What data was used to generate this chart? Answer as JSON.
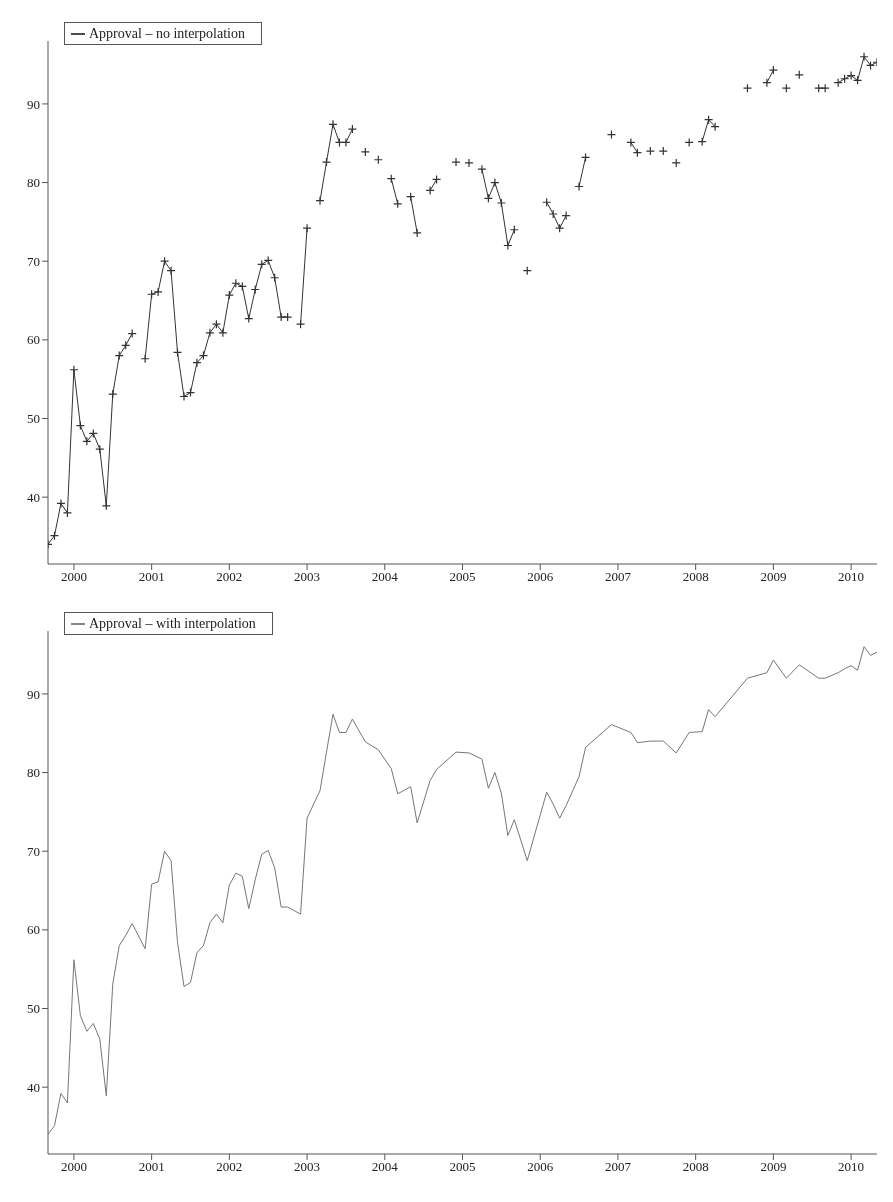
{
  "chart_data": [
    {
      "type": "line",
      "legend": "top left",
      "marker": "cross",
      "grid": false,
      "xlim": [
        "1999-09",
        "2010-05"
      ],
      "xticks": [
        "2000",
        "2001",
        "2002",
        "2003",
        "2004",
        "2005",
        "2006",
        "2007",
        "2008",
        "2009",
        "2010"
      ],
      "ylim": [
        31.5,
        98
      ],
      "yticks": [
        40,
        50,
        60,
        70,
        80,
        90
      ],
      "series": [
        {
          "name": "Approval – no interpolation",
          "color": "#333333",
          "x": [
            "1999-09",
            "1999-10",
            "1999-11",
            "1999-12",
            "2000-01",
            "2000-02",
            "2000-03",
            "2000-04",
            "2000-05",
            "2000-06",
            "2000-07",
            "2000-08",
            "2000-09",
            "2000-10",
            "2000-11",
            "2000-12",
            "2001-01",
            "2001-02",
            "2001-03",
            "2001-04",
            "2001-05",
            "2001-06",
            "2001-07",
            "2001-08",
            "2001-09",
            "2001-10",
            "2001-11",
            "2001-12",
            "2002-01",
            "2002-02",
            "2002-03",
            "2002-04",
            "2002-05",
            "2002-06",
            "2002-07",
            "2002-08",
            "2002-09",
            "2002-10",
            "2002-11",
            "2002-12",
            "2003-01",
            "2003-02",
            "2003-03",
            "2003-04",
            "2003-05",
            "2003-06",
            "2003-07",
            "2003-08",
            "2003-09",
            "2003-10",
            "2003-11",
            "2003-12",
            "2004-01",
            "2004-02",
            "2004-03",
            "2004-04",
            "2004-05",
            "2004-06",
            "2004-07",
            "2004-08",
            "2004-09",
            "2004-10",
            "2004-11",
            "2004-12",
            "2005-01",
            "2005-02",
            "2005-03",
            "2005-04",
            "2005-05",
            "2005-06",
            "2005-07",
            "2005-08",
            "2005-09",
            "2005-10",
            "2005-11",
            "2005-12",
            "2006-01",
            "2006-02",
            "2006-03",
            "2006-04",
            "2006-05",
            "2006-06",
            "2006-07",
            "2006-08",
            "2006-09",
            "2006-10",
            "2006-11",
            "2006-12",
            "2007-01",
            "2007-02",
            "2007-03",
            "2007-04",
            "2007-05",
            "2007-06",
            "2007-07",
            "2007-08",
            "2007-09",
            "2007-10",
            "2007-11",
            "2007-12",
            "2008-01",
            "2008-02",
            "2008-03",
            "2008-04",
            "2008-05",
            "2008-06",
            "2008-07",
            "2008-08",
            "2008-09",
            "2008-10",
            "2008-11",
            "2008-12",
            "2009-01",
            "2009-02",
            "2009-03",
            "2009-04",
            "2009-05",
            "2009-06",
            "2009-07",
            "2009-08",
            "2009-09",
            "2009-10",
            "2009-11",
            "2009-12",
            "2010-01",
            "2010-02",
            "2010-03",
            "2010-04",
            "2010-05"
          ],
          "values": [
            34.0,
            35.1,
            39.2,
            38.0,
            56.2,
            49.1,
            47.1,
            48.1,
            46.1,
            38.9,
            53.1,
            58.0,
            59.3,
            60.8,
            null,
            57.6,
            65.8,
            66.1,
            70.0,
            68.8,
            58.4,
            52.8,
            53.3,
            57.1,
            58.0,
            60.9,
            62.0,
            60.9,
            65.7,
            67.2,
            66.8,
            62.7,
            66.4,
            69.6,
            70.1,
            67.9,
            62.9,
            62.9,
            null,
            62.0,
            74.2,
            null,
            77.7,
            82.6,
            87.4,
            85.1,
            85.1,
            86.8,
            null,
            83.9,
            null,
            82.9,
            null,
            80.5,
            77.3,
            null,
            78.2,
            73.6,
            null,
            79.0,
            80.4,
            null,
            null,
            82.6,
            null,
            82.5,
            null,
            81.7,
            78.0,
            80.0,
            77.4,
            72.0,
            74.0,
            null,
            68.8,
            null,
            null,
            77.5,
            76.0,
            74.2,
            75.8,
            null,
            79.5,
            83.2,
            null,
            null,
            null,
            86.1,
            null,
            null,
            85.1,
            83.8,
            null,
            84.0,
            null,
            84.0,
            null,
            82.5,
            null,
            85.1,
            null,
            85.2,
            88.0,
            87.1,
            null,
            null,
            null,
            null,
            92.0,
            null,
            null,
            92.7,
            94.3,
            null,
            92.0,
            null,
            93.7,
            null,
            null,
            92.0,
            92.0,
            null,
            92.7,
            93.2,
            93.6,
            93.0,
            96.0,
            94.9,
            95.3
          ]
        }
      ]
    },
    {
      "type": "line",
      "legend": "top left",
      "grid": false,
      "xlim": [
        "1999-09",
        "2010-05"
      ],
      "xticks": [
        "2000",
        "2001",
        "2002",
        "2003",
        "2004",
        "2005",
        "2006",
        "2007",
        "2008",
        "2009",
        "2010"
      ],
      "ylim": [
        31.5,
        98
      ],
      "yticks": [
        40,
        50,
        60,
        70,
        80,
        90
      ],
      "series": [
        {
          "name": "Approval – with interpolation",
          "color": "#777777",
          "x": [
            "1999-09",
            "1999-10",
            "1999-11",
            "1999-12",
            "2000-01",
            "2000-02",
            "2000-03",
            "2000-04",
            "2000-05",
            "2000-06",
            "2000-07",
            "2000-08",
            "2000-09",
            "2000-10",
            "2000-12",
            "2001-01",
            "2001-02",
            "2001-03",
            "2001-04",
            "2001-05",
            "2001-06",
            "2001-07",
            "2001-08",
            "2001-09",
            "2001-10",
            "2001-11",
            "2001-12",
            "2002-01",
            "2002-02",
            "2002-03",
            "2002-04",
            "2002-05",
            "2002-06",
            "2002-07",
            "2002-08",
            "2002-09",
            "2002-10",
            "2002-12",
            "2003-01",
            "2003-03",
            "2003-04",
            "2003-05",
            "2003-06",
            "2003-07",
            "2003-08",
            "2003-10",
            "2003-12",
            "2004-02",
            "2004-03",
            "2004-05",
            "2004-06",
            "2004-08",
            "2004-09",
            "2004-12",
            "2005-02",
            "2005-04",
            "2005-05",
            "2005-06",
            "2005-07",
            "2005-08",
            "2005-09",
            "2005-11",
            "2006-02",
            "2006-03",
            "2006-04",
            "2006-05",
            "2006-07",
            "2006-08",
            "2006-12",
            "2007-03",
            "2007-04",
            "2007-06",
            "2007-08",
            "2007-10",
            "2007-12",
            "2008-02",
            "2008-03",
            "2008-04",
            "2008-09",
            "2008-12",
            "2009-01",
            "2009-03",
            "2009-05",
            "2009-08",
            "2009-09",
            "2009-11",
            "2009-12",
            "2010-01",
            "2010-02",
            "2010-03",
            "2010-04",
            "2010-05"
          ],
          "values": [
            34.0,
            35.1,
            39.2,
            38.0,
            56.2,
            49.1,
            47.1,
            48.1,
            46.1,
            38.9,
            53.1,
            58.0,
            59.3,
            60.8,
            57.6,
            65.8,
            66.1,
            70.0,
            68.8,
            58.4,
            52.8,
            53.3,
            57.1,
            58.0,
            60.9,
            62.0,
            60.9,
            65.7,
            67.2,
            66.8,
            62.7,
            66.4,
            69.6,
            70.1,
            67.9,
            62.9,
            62.9,
            62.0,
            74.2,
            77.7,
            82.6,
            87.4,
            85.1,
            85.1,
            86.8,
            83.9,
            82.9,
            80.5,
            77.3,
            78.2,
            73.6,
            79.0,
            80.4,
            82.6,
            82.5,
            81.7,
            78.0,
            80.0,
            77.4,
            72.0,
            74.0,
            68.8,
            77.5,
            76.0,
            74.2,
            75.8,
            79.5,
            83.2,
            86.1,
            85.1,
            83.8,
            84.0,
            84.0,
            82.5,
            85.1,
            85.2,
            88.0,
            87.1,
            92.0,
            92.7,
            94.3,
            92.0,
            93.7,
            92.0,
            92.0,
            92.7,
            93.2,
            93.6,
            93.0,
            96.0,
            94.9,
            95.3
          ]
        }
      ]
    }
  ]
}
